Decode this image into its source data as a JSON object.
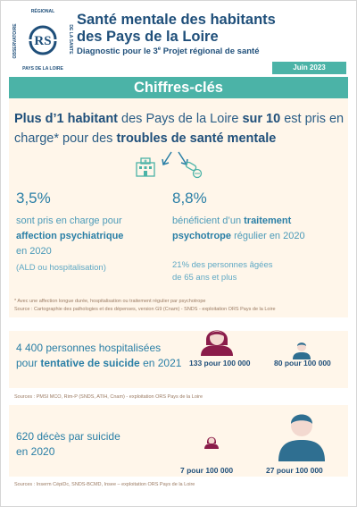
{
  "header": {
    "title_line1": "Santé mentale des habitants",
    "title_line2": "des Pays de la Loire",
    "subtitle_pre": "Diagnostic pour le 3",
    "subtitle_sup": "e",
    "subtitle_post": " Projet régional de santé",
    "date": "Juin 2023",
    "logo_ring_top": "OBSERVATOIRE RÉGIONAL DE LA SANTÉ",
    "logo_ring_bottom": "PAYS DE LA LOIRE",
    "logo_initials": "ORS"
  },
  "section": {
    "title": "Chiffres-clés"
  },
  "headline": {
    "part1": "Plus d’1 habitant",
    "part2": " des Pays de la Loire ",
    "part3": "sur 10",
    "part4": " est pris en charge* pour des ",
    "part5": "troubles de santé mentale"
  },
  "left_col": {
    "pct": "3,5%",
    "line1": "sont pris en charge pour",
    "line2": "affection psychiatrique",
    "line3": "en 2020",
    "note": "(ALD ou hospitalisation)"
  },
  "right_col": {
    "pct": "8,8%",
    "line1a": "bénéficient d’un ",
    "line1b": "traitement",
    "line2a": "psychotrope",
    "line2b": " régulier en 2020",
    "note1": "21% des personnes âgées",
    "note2": "de 65 ans et plus"
  },
  "footnotes": {
    "f1": "* Avec une affection longue durée, hospitalisation ou traitement régulier par psychotrope",
    "f2": "Source : Cartographie des pathologies et des dépenses, version G9 (Cnam) - SNDS - exploitation ORS Pays de la Loire"
  },
  "suicide_attempts": {
    "count": "4 400",
    "text1": " personnes hospitalisées",
    "text2a": "pour ",
    "text2b": "tentative de suicide",
    "text2c": " en 2021",
    "rate_women": "133 pour 100 000",
    "rate_men": "80 pour 100 000",
    "source": "Sources : PMSI MCO, Rim-P (SNDS, ATIH, Cnam) - exploitation ORS Pays de la Loire"
  },
  "suicide_deaths": {
    "line1": "620 décès par suicide",
    "line2": "en 2020",
    "rate_women": "7 pour 100 000",
    "rate_men": "27 pour 100 000",
    "source": "Sources : Inserm CépiDc, SNDS-BCMD, Insee – exploitation ORS Pays de la Loire"
  },
  "colors": {
    "teal": "#4bb3a7",
    "navy": "#1f4f7a",
    "blue": "#2a7fa6",
    "cream": "#fff6ea",
    "woman": "#8a1c4a",
    "man": "#2f6f91"
  },
  "icons": [
    "hospital-icon",
    "arrows-icon",
    "pills-icon",
    "woman-icon",
    "man-icon",
    "ors-logo"
  ]
}
